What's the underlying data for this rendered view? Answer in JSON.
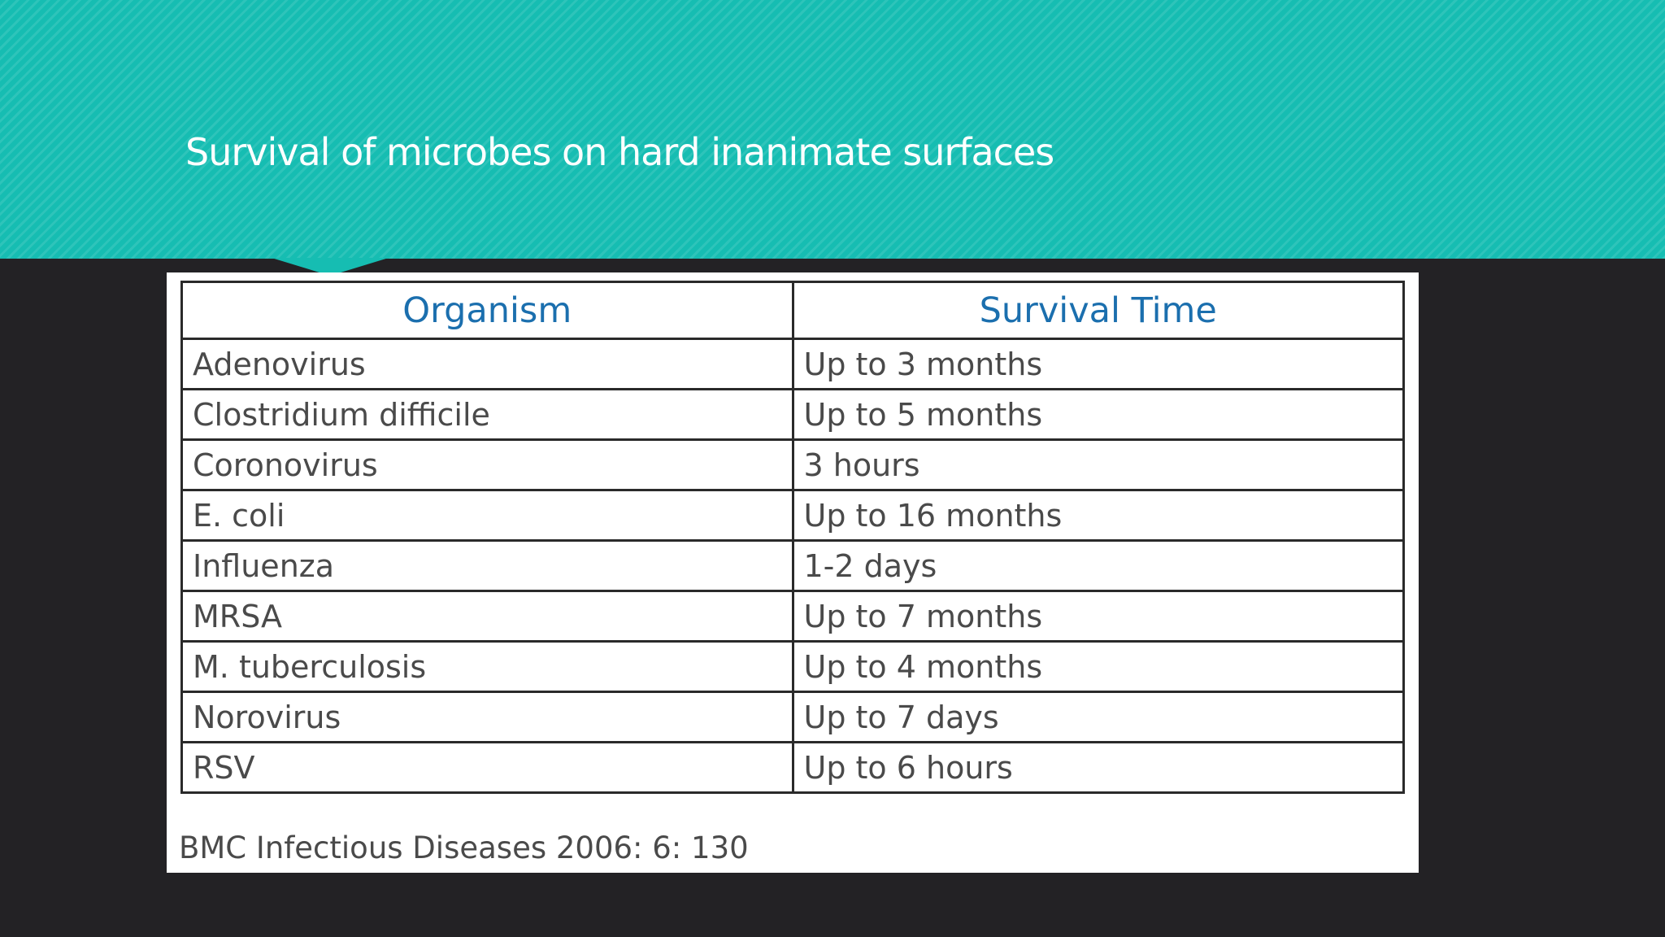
{
  "slide": {
    "title": "Survival of microbes on hard inanimate surfaces",
    "colors": {
      "header_band": "#16bdb2",
      "background": "#232225",
      "header_text": "#1b6fae"
    }
  },
  "table": {
    "headers": [
      "Organism",
      "Survival Time"
    ],
    "rows": [
      [
        "Adenovirus",
        "Up to 3 months"
      ],
      [
        "Clostridium difficile",
        "Up to 5 months"
      ],
      [
        "Coronovirus",
        "3 hours"
      ],
      [
        "E. coli",
        "Up to 16 months"
      ],
      [
        "Influenza",
        "1-2 days"
      ],
      [
        "MRSA",
        "Up to 7 months"
      ],
      [
        "M. tuberculosis",
        "Up to 4 months"
      ],
      [
        "Norovirus",
        "Up to 7 days"
      ],
      [
        "RSV",
        "Up to 6 hours"
      ]
    ],
    "citation": "BMC Infectious Diseases 2006: 6: 130"
  }
}
